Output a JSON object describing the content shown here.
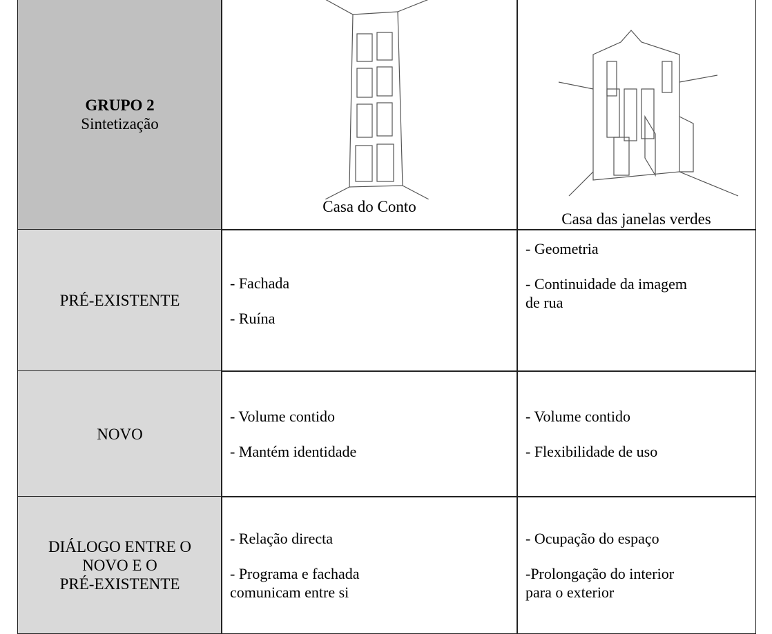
{
  "table": {
    "header": {
      "title": "GRUPO 2",
      "subtitle": "Sintetização",
      "col2_caption": "Casa do Conto",
      "col3_caption": "Casa das janelas verdes"
    },
    "rows": [
      {
        "label": [
          "PRÉ-EXISTENTE"
        ],
        "col2": [
          [
            "- Fachada"
          ],
          [
            "- Ruína"
          ]
        ],
        "col3": [
          [
            "- Geometria"
          ],
          [
            "- Continuidade da imagem",
            "de rua"
          ]
        ]
      },
      {
        "label": [
          "NOVO"
        ],
        "col2": [
          [
            "- Volume contido"
          ],
          [
            "- Mantém identidade"
          ]
        ],
        "col3": [
          [
            "- Volume contido"
          ],
          [
            "- Flexibilidade de uso"
          ]
        ]
      },
      {
        "label": [
          "DIÁLOGO ENTRE O",
          "NOVO E O",
          "PRÉ-EXISTENTE"
        ],
        "col2": [
          [
            "- Relação directa"
          ],
          [
            "- Programa e fachada",
            "comunicam entre si"
          ]
        ],
        "col3": [
          [
            "- Ocupação do espaço"
          ],
          [
            "-Prolongação do interior",
            "para o exterior"
          ]
        ]
      }
    ]
  }
}
